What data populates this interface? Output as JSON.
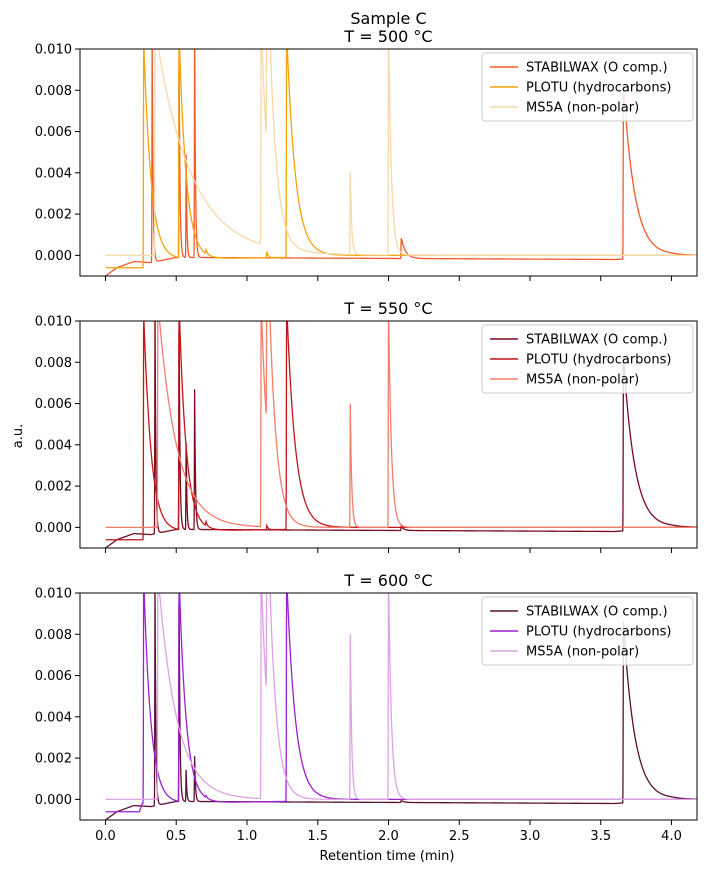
{
  "figure": {
    "xlabel": "Retention time (min)",
    "ylabel": "a.u."
  },
  "chart_data": [
    {
      "type": "line",
      "title_lines": [
        "Sample C",
        "T = 500 °C"
      ],
      "xlim": [
        -0.18,
        4.18
      ],
      "ylim": [
        -0.001,
        0.01
      ],
      "x_ticks": [
        0.0,
        0.5,
        1.0,
        1.5,
        2.0,
        2.5,
        3.0,
        3.5,
        4.0
      ],
      "x_tick_labels": [],
      "y_ticks": [
        0.0,
        0.002,
        0.004,
        0.006,
        0.008,
        0.01
      ],
      "y_tick_labels": [
        "0.000",
        "0.002",
        "0.004",
        "0.006",
        "0.008",
        "0.010"
      ],
      "legend_position": "top-right",
      "series": [
        {
          "name": "STABILWAX (O comp.)",
          "color": "#f05a2a",
          "baseline": [
            [
              0.0,
              -0.001
            ],
            [
              0.08,
              -0.0006
            ],
            [
              0.2,
              -0.0003
            ],
            [
              0.32,
              -0.00035
            ],
            [
              0.5,
              -0.0001
            ],
            [
              3.6,
              -0.0002
            ],
            [
              4.0,
              0.0
            ]
          ],
          "peaks": [
            {
              "t": 0.33,
              "h": 0.011,
              "w": 0.006
            },
            {
              "t": 0.52,
              "h": 0.011,
              "w": 0.006
            },
            {
              "t": 0.57,
              "h": 0.0052,
              "w": 0.005
            },
            {
              "t": 0.63,
              "h": 0.011,
              "w": 0.006
            },
            {
              "t": 2.09,
              "h": 0.001,
              "w": 0.03
            },
            {
              "t": 3.66,
              "h": 0.0085,
              "w": 0.08
            }
          ]
        },
        {
          "name": "PLOTU (hydrocarbons)",
          "color": "#f5a30a",
          "baseline": [
            [
              0.0,
              -0.0006
            ],
            [
              0.27,
              -0.0006
            ],
            [
              0.3,
              -0.0002
            ],
            [
              1.27,
              -0.0001
            ],
            [
              1.3,
              0.0
            ],
            [
              4.0,
              0.0
            ]
          ],
          "peaks": [
            {
              "t": 0.27,
              "h": 0.011,
              "w": 0.05
            },
            {
              "t": 0.52,
              "h": 0.011,
              "w": 0.05
            },
            {
              "t": 0.71,
              "h": 0.0002,
              "w": 0.01
            },
            {
              "t": 1.14,
              "h": 0.0003,
              "w": 0.01
            },
            {
              "t": 1.28,
              "h": 0.011,
              "w": 0.06
            }
          ]
        },
        {
          "name": "MS5A (non-polar)",
          "color": "#f7d8a9",
          "baseline": [
            [
              0.0,
              0.0
            ],
            [
              0.3,
              0.0
            ],
            [
              4.0,
              0.0
            ]
          ],
          "peaks": [
            {
              "t": 0.35,
              "h": 0.011,
              "w": 0.25
            },
            {
              "t": 1.1,
              "h": 0.011,
              "w": 0.05
            },
            {
              "t": 1.14,
              "h": 0.011,
              "w": 0.05
            },
            {
              "t": 1.73,
              "h": 0.004,
              "w": 0.01
            },
            {
              "t": 2.0,
              "h": 0.011,
              "w": 0.02
            }
          ]
        }
      ]
    },
    {
      "type": "line",
      "title_lines": [
        "T = 550 °C"
      ],
      "xlim": [
        -0.18,
        4.18
      ],
      "ylim": [
        -0.001,
        0.01
      ],
      "x_ticks": [
        0.0,
        0.5,
        1.0,
        1.5,
        2.0,
        2.5,
        3.0,
        3.5,
        4.0
      ],
      "x_tick_labels": [],
      "y_ticks": [
        0.0,
        0.002,
        0.004,
        0.006,
        0.008,
        0.01
      ],
      "y_tick_labels": [
        "0.000",
        "0.002",
        "0.004",
        "0.006",
        "0.008",
        "0.010"
      ],
      "legend_position": "top-right",
      "series": [
        {
          "name": "STABILWAX (O comp.)",
          "color": "#7a0a1e",
          "baseline": [
            [
              0.0,
              -0.001
            ],
            [
              0.08,
              -0.0006
            ],
            [
              0.2,
              -0.0003
            ],
            [
              0.32,
              -0.00035
            ],
            [
              0.5,
              -0.0001
            ],
            [
              3.6,
              -0.0002
            ],
            [
              4.0,
              0.0
            ]
          ],
          "peaks": [
            {
              "t": 0.35,
              "h": 0.011,
              "w": 0.006
            },
            {
              "t": 0.52,
              "h": 0.011,
              "w": 0.006
            },
            {
              "t": 0.57,
              "h": 0.0044,
              "w": 0.005
            },
            {
              "t": 0.63,
              "h": 0.0068,
              "w": 0.006
            },
            {
              "t": 2.09,
              "h": 0.0002,
              "w": 0.02
            },
            {
              "t": 3.66,
              "h": 0.0085,
              "w": 0.08
            }
          ]
        },
        {
          "name": "PLOTU (hydrocarbons)",
          "color": "#c4141b",
          "baseline": [
            [
              0.0,
              -0.0006
            ],
            [
              0.27,
              -0.0006
            ],
            [
              0.3,
              -0.0002
            ],
            [
              1.27,
              -0.0001
            ],
            [
              1.3,
              0.0
            ],
            [
              4.0,
              0.0
            ]
          ],
          "peaks": [
            {
              "t": 0.27,
              "h": 0.011,
              "w": 0.05
            },
            {
              "t": 0.52,
              "h": 0.011,
              "w": 0.05
            },
            {
              "t": 0.71,
              "h": 0.0002,
              "w": 0.01
            },
            {
              "t": 1.14,
              "h": 0.0002,
              "w": 0.01
            },
            {
              "t": 1.28,
              "h": 0.011,
              "w": 0.06
            }
          ]
        },
        {
          "name": "MS5A (non-polar)",
          "color": "#f47e6c",
          "baseline": [
            [
              0.0,
              0.0
            ],
            [
              0.3,
              0.0
            ],
            [
              4.0,
              0.0
            ]
          ],
          "peaks": [
            {
              "t": 0.37,
              "h": 0.011,
              "w": 0.13
            },
            {
              "t": 1.1,
              "h": 0.011,
              "w": 0.05
            },
            {
              "t": 1.14,
              "h": 0.011,
              "w": 0.05
            },
            {
              "t": 1.73,
              "h": 0.006,
              "w": 0.01
            },
            {
              "t": 2.0,
              "h": 0.011,
              "w": 0.02
            }
          ]
        }
      ]
    },
    {
      "type": "line",
      "title_lines": [
        "T = 600 °C"
      ],
      "xlim": [
        -0.18,
        4.18
      ],
      "ylim": [
        -0.001,
        0.01
      ],
      "x_ticks": [
        0.0,
        0.5,
        1.0,
        1.5,
        2.0,
        2.5,
        3.0,
        3.5,
        4.0
      ],
      "x_tick_labels": [
        "0.0",
        "0.5",
        "1.0",
        "1.5",
        "2.0",
        "2.5",
        "3.0",
        "3.5",
        "4.0"
      ],
      "y_ticks": [
        0.0,
        0.002,
        0.004,
        0.006,
        0.008,
        0.01
      ],
      "y_tick_labels": [
        "0.000",
        "0.002",
        "0.004",
        "0.006",
        "0.008",
        "0.010"
      ],
      "legend_position": "top-right",
      "series": [
        {
          "name": "STABILWAX (O comp.)",
          "color": "#5c1035",
          "baseline": [
            [
              0.0,
              -0.001
            ],
            [
              0.08,
              -0.0006
            ],
            [
              0.2,
              -0.0003
            ],
            [
              0.32,
              -0.00035
            ],
            [
              0.5,
              -0.0001
            ],
            [
              3.6,
              -0.0002
            ],
            [
              4.0,
              0.0
            ]
          ],
          "peaks": [
            {
              "t": 0.35,
              "h": 0.011,
              "w": 0.006
            },
            {
              "t": 0.52,
              "h": 0.011,
              "w": 0.006
            },
            {
              "t": 0.57,
              "h": 0.0016,
              "w": 0.005
            },
            {
              "t": 0.63,
              "h": 0.0022,
              "w": 0.006
            },
            {
              "t": 2.09,
              "h": 0.0001,
              "w": 0.02
            },
            {
              "t": 3.66,
              "h": 0.0088,
              "w": 0.08
            }
          ]
        },
        {
          "name": "PLOTU (hydrocarbons)",
          "color": "#9a20d0",
          "baseline": [
            [
              0.0,
              -0.0006
            ],
            [
              0.24,
              -0.0006
            ],
            [
              0.26,
              -0.0002
            ],
            [
              1.27,
              -0.0001
            ],
            [
              1.3,
              0.0
            ],
            [
              4.0,
              0.0
            ]
          ],
          "peaks": [
            {
              "t": 0.27,
              "h": 0.011,
              "w": 0.05
            },
            {
              "t": 0.52,
              "h": 0.011,
              "w": 0.05
            },
            {
              "t": 0.71,
              "h": 0.0001,
              "w": 0.01
            },
            {
              "t": 1.28,
              "h": 0.011,
              "w": 0.06
            }
          ]
        },
        {
          "name": "MS5A (non-polar)",
          "color": "#dca3e2",
          "baseline": [
            [
              0.0,
              0.0
            ],
            [
              0.3,
              0.0
            ],
            [
              4.0,
              0.0
            ]
          ],
          "peaks": [
            {
              "t": 0.37,
              "h": 0.011,
              "w": 0.13
            },
            {
              "t": 1.1,
              "h": 0.011,
              "w": 0.05
            },
            {
              "t": 1.14,
              "h": 0.011,
              "w": 0.05
            },
            {
              "t": 1.73,
              "h": 0.008,
              "w": 0.01
            },
            {
              "t": 2.0,
              "h": 0.011,
              "w": 0.02
            }
          ]
        }
      ]
    }
  ]
}
